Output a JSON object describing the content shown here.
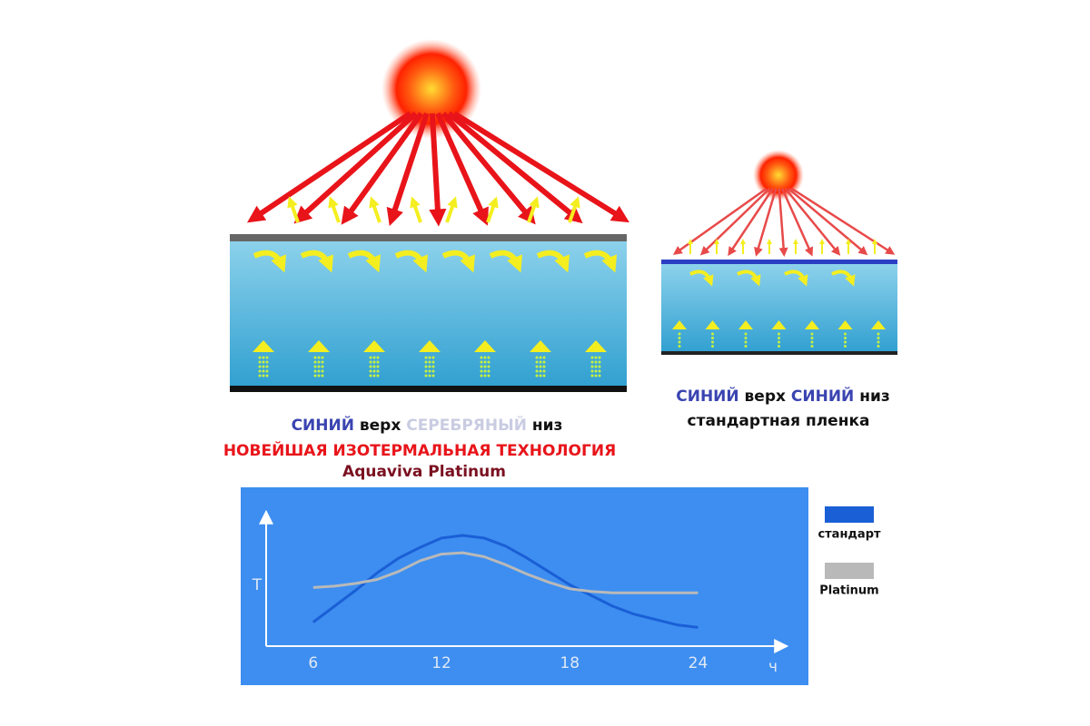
{
  "left_caption": {
    "line1": [
      "СИНИЙ",
      "верх",
      "СЕРЕБРЯНЫЙ",
      "низ"
    ],
    "line2": "НОВЕЙШАЯ ИЗОТЕРМАЛЬНАЯ ТЕХНОЛОГИЯ",
    "line3": "Aquaviva Platinum"
  },
  "right_caption": {
    "line1": [
      "СИНИЙ",
      "верх",
      "СИНИЙ",
      "низ"
    ],
    "line2": "стандартная пленка"
  },
  "chart_data": {
    "type": "line",
    "xlabel": "ч",
    "ylabel": "T",
    "x": [
      6,
      7,
      8,
      9,
      10,
      11,
      12,
      13,
      14,
      15,
      16,
      17,
      18,
      19,
      20,
      21,
      22,
      23,
      24
    ],
    "xlim": [
      3.8,
      28.1
    ],
    "xticks": [
      6,
      12,
      18,
      24
    ],
    "ylim": [
      0,
      10
    ],
    "legend": "right",
    "background": "#3d8ef0",
    "series": [
      {
        "name": "стандарт",
        "color": "#1a5fd6",
        "values": [
          1.8,
          3.0,
          4.2,
          5.5,
          6.6,
          7.4,
          8.1,
          8.3,
          8.1,
          7.5,
          6.6,
          5.6,
          4.6,
          3.8,
          3.0,
          2.4,
          2.0,
          1.6,
          1.4
        ]
      },
      {
        "name": "Platinum",
        "color": "#b9b9b9",
        "values": [
          4.4,
          4.5,
          4.7,
          5.0,
          5.6,
          6.4,
          6.9,
          7.0,
          6.7,
          6.1,
          5.4,
          4.8,
          4.3,
          4.1,
          4.0,
          4.0,
          4.0,
          4.0,
          4.0
        ]
      }
    ]
  }
}
